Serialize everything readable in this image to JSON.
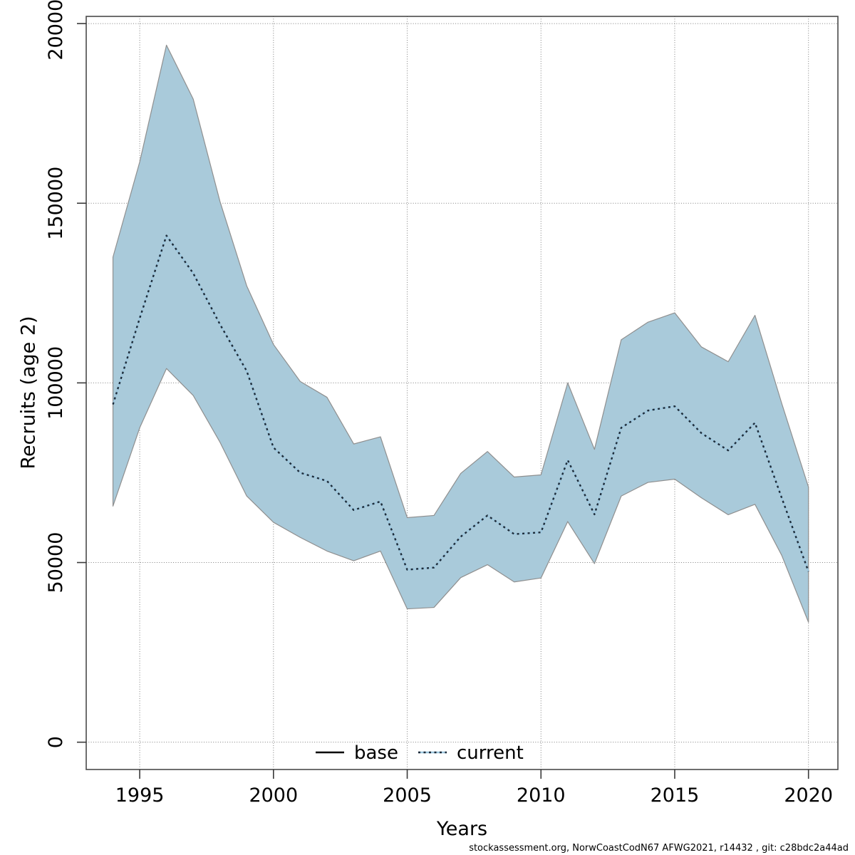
{
  "figure": {
    "xlabel": "Years",
    "ylabel": "Recruits (age 2)",
    "watermark": "stockassessment.org, NorwCoastCodN67  AFWG2021, r14432 , git: c28bdc2a44ad"
  },
  "legend": {
    "items": [
      {
        "label": "base",
        "line": "solid",
        "color": "#000000"
      },
      {
        "label": "current",
        "line": "dotted",
        "color": "#9fc8df",
        "dot_color": "#1d2c3a"
      }
    ]
  },
  "chart_data": {
    "type": "line",
    "title": "",
    "xlabel": "Years",
    "ylabel": "Recruits (age 2)",
    "grid": true,
    "legend_position": "bottom-center-inside",
    "xlim": [
      1993.0,
      2021.1
    ],
    "ylim": [
      -7600,
      202000
    ],
    "x_ticks": [
      1995,
      2000,
      2005,
      2010,
      2015,
      2020
    ],
    "x_tick_labels": [
      "1995",
      "2000",
      "2005",
      "2010",
      "2015",
      "2020"
    ],
    "y_ticks": [
      0,
      50000,
      100000,
      150000,
      200000
    ],
    "y_tick_labels": [
      "0",
      "50000",
      "100000",
      "150000",
      "200000"
    ],
    "x": [
      1994,
      1995,
      1996,
      1997,
      1998,
      1999,
      2000,
      2001,
      2002,
      2003,
      2004,
      2005,
      2006,
      2007,
      2008,
      2009,
      2010,
      2011,
      2012,
      2013,
      2014,
      2015,
      2016,
      2017,
      2018,
      2019,
      2020
    ],
    "series": [
      {
        "name": "current",
        "style": "dotted",
        "color": "#1d2c3a",
        "underlay_color": "#9fc8df",
        "values": [
          94000,
          118000,
          141000,
          130500,
          116300,
          103300,
          82000,
          75000,
          72700,
          64600,
          67000,
          48000,
          48600,
          57200,
          63100,
          57900,
          58400,
          78500,
          63400,
          87500,
          92300,
          93500,
          86000,
          81200,
          88900,
          68000,
          47500
        ]
      }
    ],
    "band": {
      "series": "current",
      "fill": "#a9cada",
      "edge": "#8f8f8f",
      "lower": [
        65700,
        87500,
        104000,
        96500,
        83500,
        68500,
        61200,
        57000,
        53200,
        50500,
        53200,
        37100,
        37500,
        45800,
        49400,
        44600,
        45700,
        61400,
        49700,
        68500,
        72300,
        73200,
        68000,
        63300,
        66200,
        52000,
        33400
      ],
      "upper": [
        135000,
        161500,
        194000,
        179000,
        150500,
        127000,
        110700,
        100400,
        96000,
        83000,
        85000,
        62500,
        63100,
        74800,
        80900,
        73800,
        74400,
        100000,
        81500,
        112000,
        116900,
        119500,
        110000,
        105900,
        118800,
        94300,
        71000
      ]
    },
    "colors": {
      "grid": "#7e7e7e",
      "box": "#4a4a4a",
      "tick": "#3a3a3a",
      "text": "#000000"
    }
  }
}
